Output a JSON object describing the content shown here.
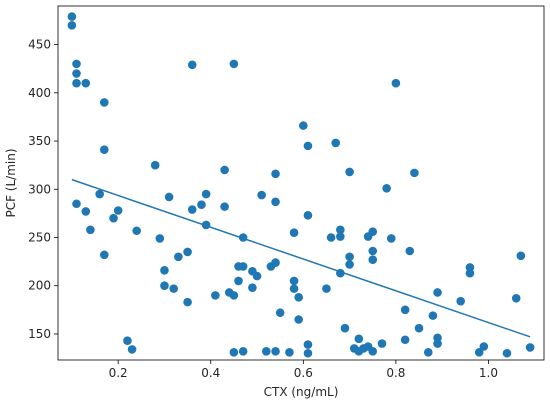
{
  "chart_data": {
    "type": "scatter",
    "title": "",
    "xlabel": "CTX (ng/mL)",
    "ylabel": "PCF (L/min)",
    "xlim": [
      0.07,
      1.12
    ],
    "ylim": [
      123,
      490
    ],
    "x_ticks": [
      0.2,
      0.4,
      0.6,
      0.8,
      1.0
    ],
    "x_tick_labels": [
      "0.2",
      "0.4",
      "0.6",
      "0.8",
      "1.0"
    ],
    "y_ticks": [
      150,
      200,
      250,
      300,
      350,
      400,
      450
    ],
    "y_tick_labels": [
      "150",
      "200",
      "250",
      "300",
      "350",
      "400",
      "450"
    ],
    "grid": false,
    "point_color": "#1f77b4",
    "line_color": "#1f77b4",
    "trendline": {
      "x": [
        0.1,
        1.09
      ],
      "y": [
        310,
        147
      ]
    },
    "points": [
      [
        0.1,
        479
      ],
      [
        0.1,
        470
      ],
      [
        0.11,
        430
      ],
      [
        0.11,
        420
      ],
      [
        0.11,
        410
      ],
      [
        0.13,
        410
      ],
      [
        0.11,
        285
      ],
      [
        0.13,
        277
      ],
      [
        0.14,
        258
      ],
      [
        0.16,
        295
      ],
      [
        0.17,
        390
      ],
      [
        0.17,
        341
      ],
      [
        0.17,
        232
      ],
      [
        0.19,
        270
      ],
      [
        0.2,
        278
      ],
      [
        0.22,
        143
      ],
      [
        0.23,
        134
      ],
      [
        0.24,
        257
      ],
      [
        0.28,
        325
      ],
      [
        0.29,
        249
      ],
      [
        0.3,
        216
      ],
      [
        0.3,
        200
      ],
      [
        0.31,
        292
      ],
      [
        0.32,
        197
      ],
      [
        0.33,
        230
      ],
      [
        0.35,
        235
      ],
      [
        0.35,
        183
      ],
      [
        0.36,
        429
      ],
      [
        0.36,
        279
      ],
      [
        0.38,
        284
      ],
      [
        0.39,
        295
      ],
      [
        0.39,
        263
      ],
      [
        0.41,
        190
      ],
      [
        0.43,
        320
      ],
      [
        0.43,
        282
      ],
      [
        0.44,
        193
      ],
      [
        0.45,
        430
      ],
      [
        0.45,
        190
      ],
      [
        0.45,
        131
      ],
      [
        0.46,
        220
      ],
      [
        0.46,
        205
      ],
      [
        0.47,
        250
      ],
      [
        0.47,
        220
      ],
      [
        0.47,
        132
      ],
      [
        0.49,
        215
      ],
      [
        0.49,
        198
      ],
      [
        0.5,
        210
      ],
      [
        0.51,
        294
      ],
      [
        0.52,
        132
      ],
      [
        0.53,
        220
      ],
      [
        0.54,
        316
      ],
      [
        0.54,
        287
      ],
      [
        0.54,
        224
      ],
      [
        0.54,
        132
      ],
      [
        0.55,
        172
      ],
      [
        0.57,
        131
      ],
      [
        0.58,
        255
      ],
      [
        0.58,
        205
      ],
      [
        0.58,
        197
      ],
      [
        0.59,
        188
      ],
      [
        0.59,
        165
      ],
      [
        0.6,
        366
      ],
      [
        0.61,
        345
      ],
      [
        0.61,
        273
      ],
      [
        0.61,
        139
      ],
      [
        0.61,
        130
      ],
      [
        0.65,
        197
      ],
      [
        0.66,
        250
      ],
      [
        0.67,
        348
      ],
      [
        0.68,
        258
      ],
      [
        0.68,
        251
      ],
      [
        0.68,
        213
      ],
      [
        0.69,
        156
      ],
      [
        0.7,
        318
      ],
      [
        0.7,
        230
      ],
      [
        0.7,
        222
      ],
      [
        0.71,
        135
      ],
      [
        0.72,
        132
      ],
      [
        0.72,
        145
      ],
      [
        0.73,
        135
      ],
      [
        0.74,
        251
      ],
      [
        0.74,
        137
      ],
      [
        0.75,
        256
      ],
      [
        0.75,
        236
      ],
      [
        0.75,
        227
      ],
      [
        0.75,
        132
      ],
      [
        0.77,
        140
      ],
      [
        0.78,
        301
      ],
      [
        0.79,
        249
      ],
      [
        0.8,
        410
      ],
      [
        0.82,
        175
      ],
      [
        0.82,
        144
      ],
      [
        0.83,
        236
      ],
      [
        0.84,
        317
      ],
      [
        0.85,
        156
      ],
      [
        0.87,
        131
      ],
      [
        0.88,
        169
      ],
      [
        0.89,
        193
      ],
      [
        0.89,
        146
      ],
      [
        0.89,
        140
      ],
      [
        0.94,
        184
      ],
      [
        0.96,
        219
      ],
      [
        0.96,
        213
      ],
      [
        0.98,
        131
      ],
      [
        0.99,
        137
      ],
      [
        1.04,
        130
      ],
      [
        1.06,
        187
      ],
      [
        1.07,
        231
      ],
      [
        1.09,
        136
      ]
    ]
  }
}
